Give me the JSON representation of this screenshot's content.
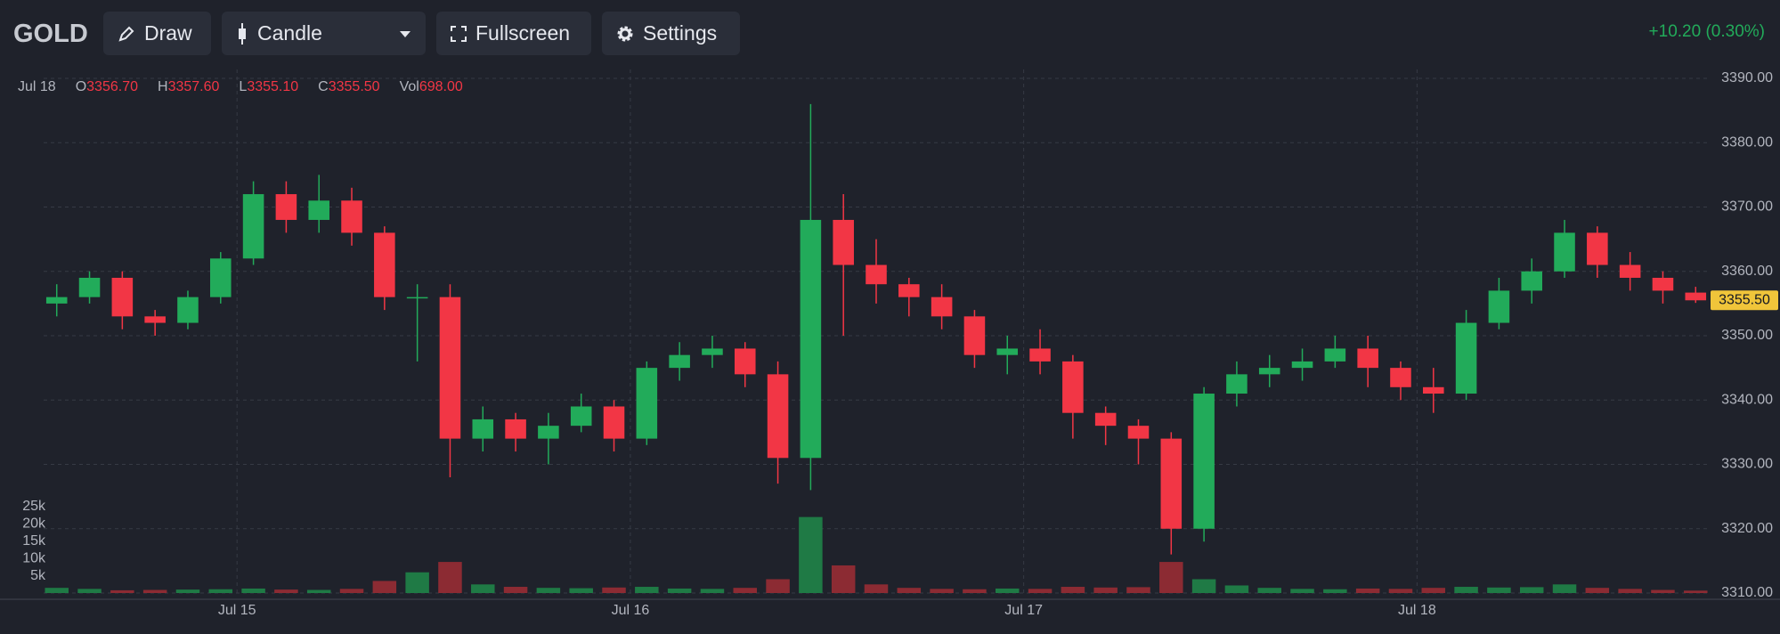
{
  "toolbar": {
    "symbol": "GOLD",
    "buttons": [
      "Draw",
      "Candle",
      "Fullscreen",
      "Settings"
    ],
    "change": "+10.20 (0.30%)"
  },
  "legend": {
    "date": "Jul 18",
    "items": [
      {
        "label": "O",
        "value": "3356.70"
      },
      {
        "label": "H",
        "value": "3357.60"
      },
      {
        "label": "L",
        "value": "3355.10"
      },
      {
        "label": "C",
        "value": "3355.50"
      },
      {
        "label": "Vol",
        "value": "698.00"
      }
    ]
  },
  "chart_data": {
    "type": "candlestick",
    "x": [
      -11,
      -9,
      -7,
      -5,
      -3,
      -1,
      1,
      3,
      5,
      7,
      9,
      11,
      13,
      15,
      17,
      19,
      21,
      23,
      25,
      27,
      29,
      31,
      33,
      35,
      37,
      39,
      41,
      43,
      45,
      47,
      49,
      51,
      53,
      55,
      57,
      59,
      61,
      63,
      65,
      67,
      69,
      71,
      73,
      75,
      77,
      79,
      81,
      83,
      85,
      87,
      89
    ],
    "open": [
      3355,
      3356,
      3359,
      3353,
      3352,
      3356,
      3362,
      3372,
      3368,
      3371,
      3366,
      3356,
      3356,
      3334,
      3337,
      3334,
      3336,
      3339,
      3334,
      3345,
      3347,
      3348,
      3344,
      3331,
      3368,
      3361,
      3358,
      3356,
      3353,
      3347,
      3348,
      3346,
      3338,
      3336,
      3334,
      3320,
      3341,
      3344,
      3345,
      3346,
      3348,
      3345,
      3342,
      3341,
      3352,
      3357,
      3360,
      3366,
      3361,
      3359,
      3356.7
    ],
    "high": [
      3358,
      3360,
      3360,
      3354,
      3357,
      3363,
      3374,
      3374,
      3375,
      3373,
      3367,
      3358,
      3358,
      3339,
      3338,
      3338,
      3341,
      3340,
      3346,
      3349,
      3350,
      3349,
      3346,
      3386,
      3372,
      3365,
      3359,
      3358,
      3354,
      3350,
      3351,
      3347,
      3339,
      3337,
      3335,
      3342,
      3346,
      3347,
      3348,
      3350,
      3350,
      3346,
      3345,
      3354,
      3359,
      3362,
      3368,
      3367,
      3363,
      3360,
      3357.6
    ],
    "low": [
      3353,
      3355,
      3351,
      3350,
      3351,
      3355,
      3361,
      3366,
      3366,
      3364,
      3354,
      3346,
      3328,
      3332,
      3332,
      3330,
      3335,
      3332,
      3333,
      3343,
      3345,
      3342,
      3327,
      3326,
      3350,
      3355,
      3353,
      3351,
      3345,
      3344,
      3344,
      3334,
      3333,
      3330,
      3316,
      3318,
      3339,
      3342,
      3343,
      3345,
      3342,
      3340,
      3338,
      3340,
      3351,
      3355,
      3359,
      3359,
      3357,
      3355,
      3355.1
    ],
    "close": [
      3356,
      3359,
      3353,
      3352,
      3356,
      3362,
      3372,
      3368,
      3371,
      3366,
      3356,
      3356,
      3334,
      3337,
      3334,
      3336,
      3339,
      3334,
      3345,
      3347,
      3348,
      3344,
      3331,
      3368,
      3361,
      3358,
      3356,
      3353,
      3347,
      3348,
      3346,
      3338,
      3336,
      3334,
      3320,
      3341,
      3344,
      3345,
      3346,
      3348,
      3345,
      3342,
      3341,
      3352,
      3357,
      3360,
      3366,
      3361,
      3359,
      3357,
      3355.5
    ],
    "volume": [
      1500,
      1200,
      800,
      900,
      1000,
      1100,
      1300,
      1000,
      900,
      1200,
      3500,
      6000,
      9000,
      2500,
      1800,
      1500,
      1400,
      1600,
      1800,
      1300,
      1200,
      1500,
      4000,
      22000,
      8000,
      2500,
      1500,
      1200,
      1100,
      1300,
      1200,
      1800,
      1600,
      1700,
      9000,
      4000,
      2200,
      1500,
      1200,
      1100,
      1300,
      1200,
      1500,
      1800,
      1600,
      1700,
      2500,
      1500,
      1200,
      900,
      698
    ],
    "up_color": "#22ab5a",
    "down_color": "#f23645",
    "up_volume_color": "#1f7a45",
    "down_volume_color": "#8c2b33",
    "xlim": [
      -11.8,
      89.8
    ],
    "xticks": [
      {
        "value": 0,
        "label": "Jul 15"
      },
      {
        "value": 24,
        "label": "Jul 16"
      },
      {
        "value": 48,
        "label": "Jul 17"
      },
      {
        "value": 72,
        "label": "Jul 18"
      }
    ],
    "ylim": [
      3310,
      3390
    ],
    "yticks": [
      {
        "value": 3310,
        "label": "3310.00"
      },
      {
        "value": 3320,
        "label": "3320.00"
      },
      {
        "value": 3330,
        "label": "3330.00"
      },
      {
        "value": 3340,
        "label": "3340.00"
      },
      {
        "value": 3350,
        "label": "3350.00"
      },
      {
        "value": 3360,
        "label": "3360.00"
      },
      {
        "value": 3370,
        "label": "3370.00"
      },
      {
        "value": 3380,
        "label": "3380.00"
      },
      {
        "value": 3390,
        "label": "3390.00"
      }
    ],
    "volume_lim": [
      0,
      25000
    ],
    "volume_ticks": [
      {
        "value": 5000,
        "label": "5k"
      },
      {
        "value": 10000,
        "label": "10k"
      },
      {
        "value": 15000,
        "label": "15k"
      },
      {
        "value": 20000,
        "label": "20k"
      },
      {
        "value": 25000,
        "label": "25k"
      }
    ],
    "last_price": {
      "value": 3355.5,
      "label": "3355.50"
    },
    "grid": true
  }
}
